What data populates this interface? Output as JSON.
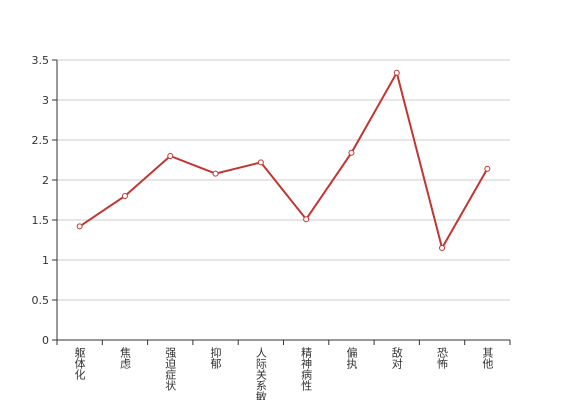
{
  "chart_data": {
    "type": "line",
    "categories": [
      "躯体化",
      "焦虑",
      "强迫症状",
      "抑郁",
      "人际关系敏感",
      "精神病性",
      "偏执",
      "敌对",
      "恐怖",
      "其他"
    ],
    "values": [
      1.42,
      1.8,
      2.3,
      2.08,
      2.22,
      1.51,
      2.34,
      3.34,
      1.15,
      2.14
    ],
    "color": "#c23531",
    "ylim": [
      0,
      3.5
    ],
    "yticks": [
      0,
      0.5,
      1,
      1.5,
      2,
      2.5,
      3,
      3.5
    ],
    "grid": true
  }
}
